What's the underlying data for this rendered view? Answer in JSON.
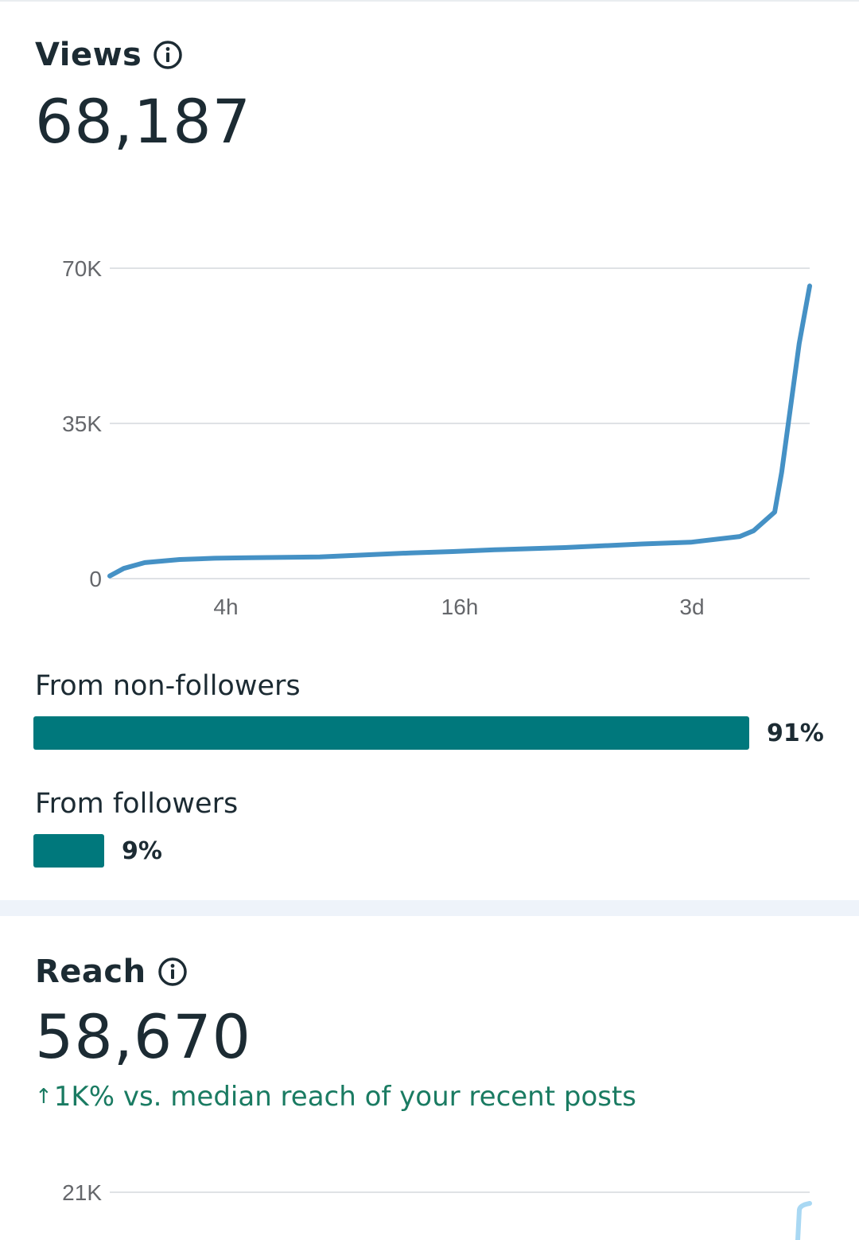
{
  "colors": {
    "text": "#1c2b33",
    "axis_text": "#65676b",
    "line": "#4591c5",
    "bar": "#00787c",
    "delta": "#1a7b62",
    "reach_line": "#a9d8f3"
  },
  "views": {
    "title": "Views",
    "info_icon": "info-icon",
    "total": "68,187",
    "non_followers_label": "From non-followers",
    "non_followers_pct": "91%",
    "non_followers_value": 91,
    "followers_label": "From followers",
    "followers_pct": "9%",
    "followers_value": 9
  },
  "reach": {
    "title": "Reach",
    "info_icon": "info-icon",
    "total": "58,670",
    "delta_arrow": "↑",
    "delta_text": "1K% vs. median reach of your recent posts"
  },
  "chart_data": [
    {
      "type": "line",
      "name": "views-over-time",
      "title": "",
      "xlabel": "",
      "ylabel": "",
      "x_ticks": [
        "4h",
        "16h",
        "3d"
      ],
      "y_ticks": [
        "0",
        "35K",
        "70K"
      ],
      "ylim": [
        0,
        70000
      ],
      "grid": true,
      "series": [
        {
          "x": [
            0,
            0.02,
            0.05,
            0.1,
            0.15,
            0.2,
            0.3,
            0.43,
            0.49,
            0.55,
            0.65,
            0.76,
            0.83,
            0.9,
            0.92,
            0.95,
            0.96,
            0.985,
            1.0
          ],
          "values": [
            600,
            2300,
            3600,
            4300,
            4600,
            4700,
            4900,
            5800,
            6100,
            6500,
            7000,
            7800,
            8200,
            9500,
            10800,
            15000,
            24000,
            53000,
            66000
          ]
        }
      ]
    },
    {
      "type": "line",
      "name": "reach-over-time",
      "title": "",
      "y_ticks": [
        "21K"
      ],
      "grid": true,
      "series": [
        {
          "values": []
        }
      ]
    }
  ]
}
